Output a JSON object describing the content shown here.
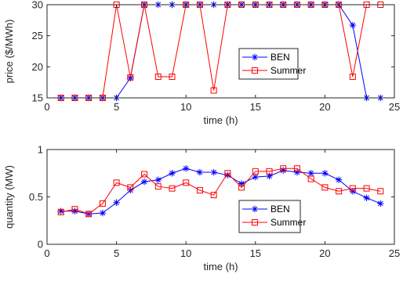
{
  "chart_data": [
    {
      "type": "line",
      "xlabel": "time (h)",
      "ylabel": "price ($/MWh)",
      "xlim": [
        0,
        25
      ],
      "ylim": [
        15,
        30
      ],
      "xticks": [
        0,
        5,
        10,
        15,
        20,
        25
      ],
      "yticks": [
        15,
        20,
        25,
        30
      ],
      "grid": false,
      "legend_position": "center-right",
      "x": [
        1,
        2,
        3,
        4,
        5,
        6,
        7,
        8,
        9,
        10,
        11,
        12,
        13,
        14,
        15,
        16,
        17,
        18,
        19,
        20,
        21,
        22,
        23,
        24
      ],
      "series": [
        {
          "name": "BEN",
          "color": "#0000ff",
          "marker": "asterisk",
          "values": [
            15,
            15,
            15,
            15,
            15,
            18.2,
            30,
            30,
            30,
            30,
            30,
            30,
            30,
            30,
            30,
            30,
            30,
            30,
            30,
            30,
            30,
            26.7,
            15,
            15
          ]
        },
        {
          "name": "Summer",
          "color": "#ff0000",
          "marker": "square",
          "values": [
            15,
            15,
            15,
            15,
            30,
            18.3,
            30,
            18.4,
            18.4,
            30,
            30,
            16.2,
            30,
            30,
            30,
            30,
            30,
            30,
            30,
            30,
            30,
            18.4,
            30,
            30
          ]
        }
      ]
    },
    {
      "type": "line",
      "xlabel": "time (h)",
      "ylabel": "quantity (MW)",
      "xlim": [
        0,
        25
      ],
      "ylim": [
        0,
        1
      ],
      "xticks": [
        0,
        5,
        10,
        15,
        20,
        25
      ],
      "yticks": [
        0,
        0.5,
        1
      ],
      "grid": false,
      "legend_position": "bottom-right",
      "x": [
        1,
        2,
        3,
        4,
        5,
        6,
        7,
        8,
        9,
        10,
        11,
        12,
        13,
        14,
        15,
        16,
        17,
        18,
        19,
        20,
        21,
        22,
        23,
        24
      ],
      "series": [
        {
          "name": "BEN",
          "color": "#0000ff",
          "marker": "asterisk",
          "values": [
            0.35,
            0.35,
            0.32,
            0.33,
            0.44,
            0.57,
            0.66,
            0.68,
            0.75,
            0.8,
            0.76,
            0.76,
            0.73,
            0.64,
            0.71,
            0.72,
            0.78,
            0.76,
            0.75,
            0.75,
            0.68,
            0.56,
            0.49,
            0.43
          ]
        },
        {
          "name": "Summer",
          "color": "#ff0000",
          "marker": "square",
          "values": [
            0.34,
            0.37,
            0.32,
            0.43,
            0.65,
            0.6,
            0.74,
            0.61,
            0.59,
            0.65,
            0.57,
            0.52,
            0.75,
            0.6,
            0.77,
            0.77,
            0.8,
            0.8,
            0.69,
            0.6,
            0.56,
            0.59,
            0.59,
            0.56
          ]
        }
      ]
    }
  ]
}
